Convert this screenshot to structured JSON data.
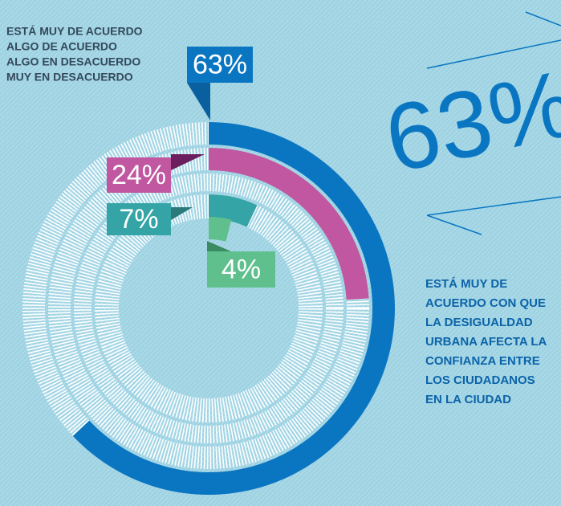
{
  "chart_data": {
    "type": "radial_bar",
    "categories": [
      "ESTÁ MUY DE ACUERDO",
      "ALGO DE ACUERDO",
      "ALGO EN DESACUERDO",
      "MUY EN DESACUERDO"
    ],
    "values": [
      63,
      24,
      7,
      4
    ],
    "value_labels": [
      "63%",
      "24%",
      "7%",
      "4%"
    ],
    "colors": [
      "#0a76c2",
      "#c057a0",
      "#35a4a6",
      "#5fc08e"
    ],
    "xlim": [
      0,
      100
    ],
    "description": [
      "ESTÁ MUY DE",
      "ACUERDO CON QUE",
      "LA DESIGUALDAD",
      "URBANA AFECTA LA",
      "CONFIANZA ENTRE",
      "LOS CIUDADANOS",
      "EN LA CIUDAD"
    ]
  }
}
